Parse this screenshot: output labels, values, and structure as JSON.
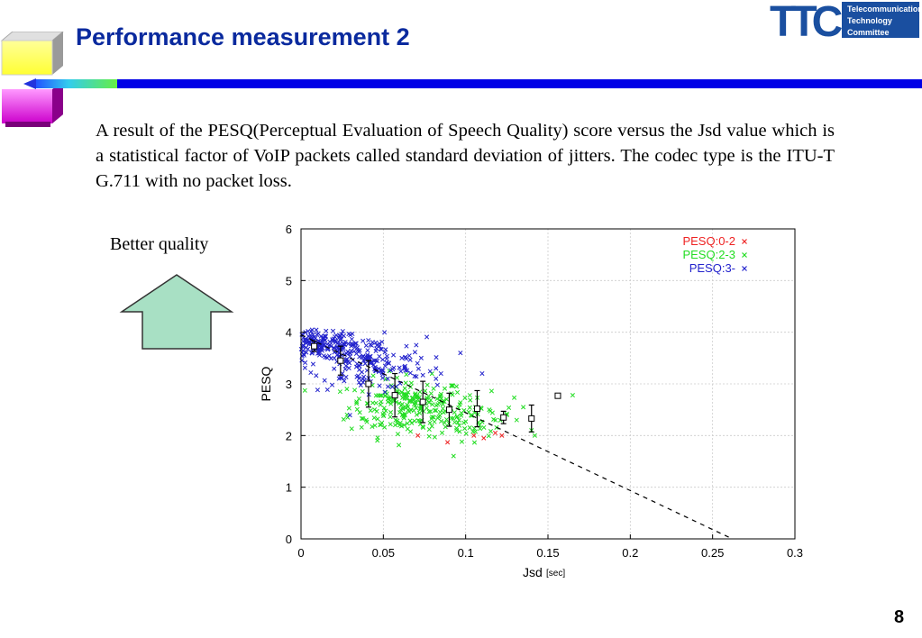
{
  "slide": {
    "title": "Performance measurement 2",
    "paragraph": "A result of the PESQ(Perceptual Evaluation of Speech Quality) score versus the Jsd value which is a statistical factor of VoIP packets called standard deviation of jitters. The codec type is the ITU-T G.711 with no packet loss.",
    "better_quality_label": "Better quality",
    "page_number": "8"
  },
  "logo": {
    "mark": "TTC",
    "lines": [
      "Telecommunication",
      "Technology",
      "Committee"
    ],
    "color": "#1a4fa0"
  },
  "colors": {
    "title": "#0a2a9e",
    "rule_blue": "#0000e6",
    "arrow_fill": "#a8e0c4",
    "red": "#ee2222",
    "green": "#22dd22",
    "blue": "#2222cc"
  },
  "chart_data": {
    "type": "scatter",
    "xlabel": "Jsd",
    "xlabel_unit": "[sec]",
    "ylabel": "PESQ",
    "xlim": [
      0,
      0.3
    ],
    "ylim": [
      0,
      6
    ],
    "x_ticks": [
      "0",
      "0.05",
      "0.1",
      "0.15",
      "0.2",
      "0.25",
      "0.3"
    ],
    "y_ticks": [
      "0",
      "1",
      "2",
      "3",
      "4",
      "5",
      "6"
    ],
    "grid": true,
    "legend_position": "top-right",
    "series": [
      {
        "name": "PESQ:0-2",
        "color": "#ee2222",
        "marker": "x",
        "points": [
          [
            0.071,
            2.0
          ],
          [
            0.089,
            1.87
          ],
          [
            0.105,
            2.0
          ],
          [
            0.111,
            1.95
          ],
          [
            0.122,
            2.0
          ],
          [
            0.118,
            2.05
          ]
        ]
      },
      {
        "name": "PESQ:2-3",
        "color": "#22dd22",
        "marker": "x",
        "clusters": [
          {
            "cx": 0.065,
            "cy": 2.55,
            "sx": 0.018,
            "sy": 0.28,
            "n": 230
          },
          {
            "cx": 0.105,
            "cy": 2.35,
            "sx": 0.012,
            "sy": 0.22,
            "n": 55
          }
        ],
        "points": [
          [
            0.131,
            2.3
          ],
          [
            0.14,
            2.1
          ],
          [
            0.142,
            2.0
          ],
          [
            0.165,
            2.78
          ],
          [
            0.135,
            2.55
          ],
          [
            0.125,
            2.4
          ]
        ]
      },
      {
        "name": "PESQ:3-",
        "color": "#2222cc",
        "marker": "x",
        "clusters": [
          {
            "cx": 0.012,
            "cy": 3.75,
            "sx": 0.012,
            "sy": 0.14,
            "n": 190
          },
          {
            "cx": 0.04,
            "cy": 3.4,
            "sx": 0.018,
            "sy": 0.25,
            "n": 170
          }
        ],
        "points": [
          [
            0.07,
            3.75
          ],
          [
            0.073,
            3.5
          ],
          [
            0.082,
            3.3
          ],
          [
            0.085,
            3.2
          ],
          [
            0.11,
            3.2
          ],
          [
            0.082,
            3.1
          ],
          [
            0.069,
            3.15
          ],
          [
            0.063,
            3.3
          ]
        ]
      },
      {
        "name": "mean",
        "marker": "square-errorbar",
        "color": "#000000",
        "points": [
          {
            "x": 0.008,
            "y": 3.73,
            "err": 0.1
          },
          {
            "x": 0.024,
            "y": 3.45,
            "err": 0.28
          },
          {
            "x": 0.041,
            "y": 3.0,
            "err": 0.45
          },
          {
            "x": 0.057,
            "y": 2.78,
            "err": 0.42
          },
          {
            "x": 0.074,
            "y": 2.65,
            "err": 0.4
          },
          {
            "x": 0.09,
            "y": 2.5,
            "err": 0.32
          },
          {
            "x": 0.107,
            "y": 2.52,
            "err": 0.35
          },
          {
            "x": 0.123,
            "y": 2.35,
            "err": 0.12
          },
          {
            "x": 0.14,
            "y": 2.33,
            "err": 0.26
          },
          {
            "x": 0.156,
            "y": 2.77,
            "err": 0.0
          }
        ]
      },
      {
        "name": "trend",
        "style": "dashed",
        "color": "#000000",
        "points": [
          [
            0.0,
            3.95
          ],
          [
            0.262,
            0.0
          ]
        ]
      }
    ]
  }
}
